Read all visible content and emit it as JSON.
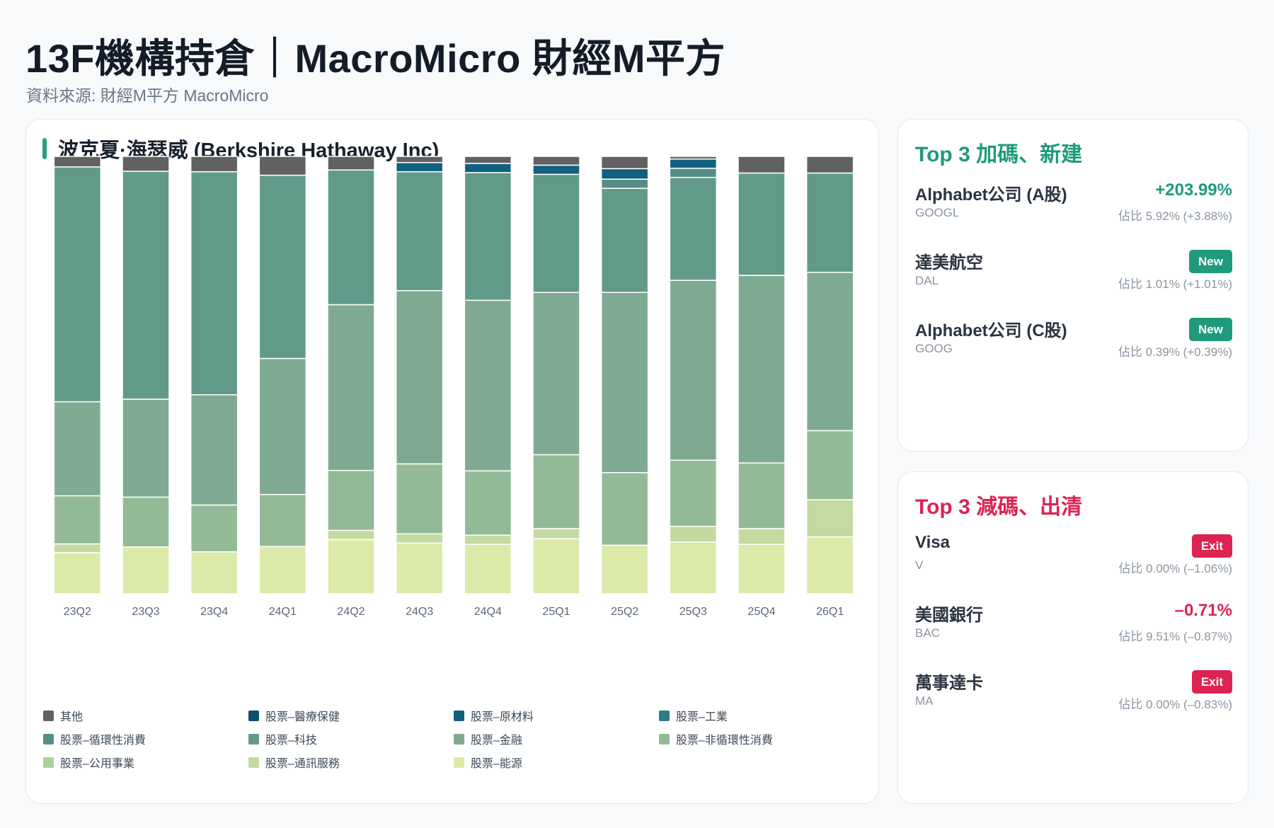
{
  "header": {
    "title": "13F機構持倉｜MacroMicro 財經M平方",
    "source": "資料來源: 財經M平方 MacroMicro"
  },
  "chart_card": {
    "title": "波克夏·海瑟威 (Berkshire Hathaway Inc)"
  },
  "chart_data": {
    "type": "bar",
    "stacked": "percent",
    "categories": [
      "23Q2",
      "23Q3",
      "23Q4",
      "24Q1",
      "24Q2",
      "24Q3",
      "24Q4",
      "25Q1",
      "25Q2",
      "25Q3",
      "25Q4",
      "26Q1"
    ],
    "ylim": [
      0,
      100
    ],
    "legend_position": "bottom",
    "grid": false,
    "series": [
      {
        "name": "股票–能源",
        "color": "#dbe9a9",
        "values": [
          9.4,
          10.7,
          9.6,
          10.8,
          12.4,
          11.6,
          11.3,
          12.6,
          11.1,
          11.8,
          11.3,
          13.0
        ]
      },
      {
        "name": "股票–通訊服務",
        "color": "#c3daa0",
        "values": [
          2.0,
          0.0,
          0.0,
          0.0,
          2.1,
          2.1,
          2.1,
          2.3,
          0.0,
          3.6,
          3.6,
          8.5
        ]
      },
      {
        "name": "股票–公用事業",
        "color": "#acd09a",
        "values": [
          0,
          0,
          0,
          0,
          0,
          0,
          0,
          0,
          0,
          0,
          0,
          0
        ]
      },
      {
        "name": "股票–非循環性消費",
        "color": "#93ba96",
        "values": [
          11.0,
          11.4,
          10.7,
          11.9,
          13.7,
          16.0,
          14.7,
          16.9,
          16.6,
          15.1,
          15.0,
          15.8
        ]
      },
      {
        "name": "股票–金融",
        "color": "#7eaa92",
        "values": [
          21.5,
          22.4,
          25.2,
          31.1,
          37.9,
          39.6,
          39.0,
          37.1,
          41.2,
          41.1,
          42.9,
          36.2
        ]
      },
      {
        "name": "股票–科技",
        "color": "#629a8a",
        "values": [
          53.7,
          52.1,
          51.0,
          41.9,
          30.8,
          27.2,
          29.2,
          27.0,
          23.8,
          23.5,
          23.4,
          22.7
        ]
      },
      {
        "name": "股票–循環性消費",
        "color": "#568d86",
        "values": [
          0.0,
          0.0,
          0.0,
          0.0,
          0.0,
          0.0,
          0.0,
          0.0,
          2.1,
          2.1,
          0.0,
          0.0
        ]
      },
      {
        "name": "股票–工業",
        "color": "#2f7a88",
        "values": [
          0,
          0,
          0,
          0,
          0,
          0,
          0,
          0,
          0,
          0,
          0,
          0
        ]
      },
      {
        "name": "股票–原材料",
        "color": "#11607d",
        "values": [
          0.0,
          0.0,
          0.0,
          0.0,
          0.0,
          2.1,
          2.1,
          2.1,
          2.4,
          2.1,
          0.0,
          0.0
        ]
      },
      {
        "name": "股票–醫療保健",
        "color": "#0b4f6c",
        "values": [
          0,
          0,
          0,
          0,
          0,
          0,
          0,
          0,
          0,
          0,
          0,
          0
        ]
      },
      {
        "name": "其他",
        "color": "#616161",
        "values": [
          2.4,
          3.4,
          3.5,
          4.3,
          3.1,
          1.4,
          1.6,
          2.0,
          2.8,
          0.6,
          3.8,
          3.8
        ]
      }
    ],
    "legend_order": [
      "其他",
      "股票–醫療保健",
      "股票–原材料",
      "股票–工業",
      "股票–循環性消費",
      "股票–科技",
      "股票–金融",
      "股票–非循環性消費",
      "股票–公用事業",
      "股票–通訊服務",
      "股票–能源"
    ]
  },
  "top_adds": {
    "title": "Top 3 加碼、新建",
    "items": [
      {
        "name": "Alphabet公司 (A股)",
        "ticker": "GOOGL",
        "change": "+203.99%",
        "badge": "",
        "weight": "佔比 5.92% (+3.88%)"
      },
      {
        "name": "達美航空",
        "ticker": "DAL",
        "change": "",
        "badge": "New",
        "weight": "佔比 1.01% (+1.01%)"
      },
      {
        "name": "Alphabet公司 (C股)",
        "ticker": "GOOG",
        "change": "",
        "badge": "New",
        "weight": "佔比 0.39% (+0.39%)"
      }
    ]
  },
  "top_cuts": {
    "title": "Top 3 減碼、出清",
    "items": [
      {
        "name": "Visa",
        "ticker": "V",
        "change": "",
        "badge": "Exit",
        "weight": "佔比 0.00% (–1.06%)"
      },
      {
        "name": "美國銀行",
        "ticker": "BAC",
        "change": "–0.71%",
        "badge": "",
        "weight": "佔比 9.51% (–0.87%)"
      },
      {
        "name": "萬事達卡",
        "ticker": "MA",
        "change": "",
        "badge": "Exit",
        "weight": "佔比 0.00% (–0.83%)"
      }
    ]
  }
}
